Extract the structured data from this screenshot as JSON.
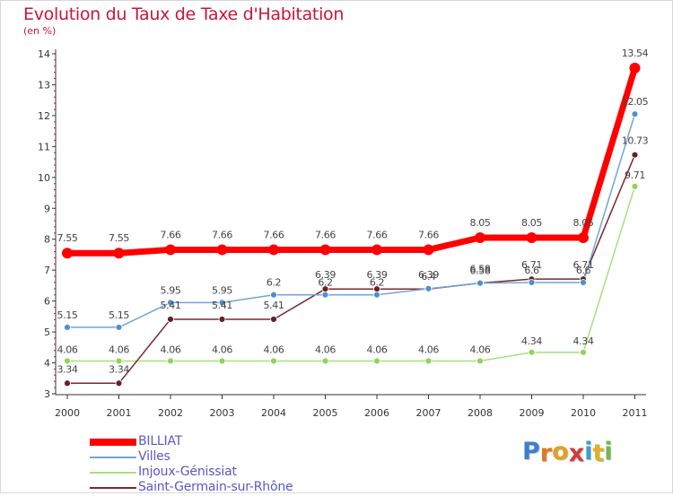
{
  "title": "Evolution du Taux de Taxe d'Habitation",
  "subtitle": "(en %)",
  "logo_text": "Proxiti",
  "chart_data": {
    "type": "line",
    "title": "Evolution du Taux de Taxe d'Habitation",
    "ylabel": "(en %)",
    "x": [
      "2000",
      "2001",
      "2002",
      "2003",
      "2004",
      "2005",
      "2006",
      "2007",
      "2008",
      "2009",
      "2010",
      "2011"
    ],
    "ylim": [
      3,
      14
    ],
    "yticks": [
      "3",
      "4",
      "5",
      "6",
      "7",
      "8",
      "9",
      "10",
      "11",
      "12",
      "13",
      "14"
    ],
    "grid": false,
    "legend_position": "bottom-left",
    "series": [
      {
        "name": "BILLIAT",
        "color": "#ff0000",
        "values": [
          7.55,
          7.55,
          7.66,
          7.66,
          7.66,
          7.66,
          7.66,
          7.66,
          8.05,
          8.05,
          8.05,
          13.54
        ],
        "labels": [
          "7.55",
          "7.55",
          "7.66",
          "7.66",
          "7.66",
          "7.66",
          "7.66",
          "7.66",
          "8.05",
          "8.05",
          "8.05",
          "13.54"
        ]
      },
      {
        "name": "Villes",
        "color": "#5b9bd5",
        "values": [
          5.15,
          5.15,
          5.95,
          5.95,
          6.2,
          6.2,
          6.2,
          6.4,
          6.58,
          6.6,
          6.6,
          12.05
        ],
        "labels": [
          "5.15",
          "5.15",
          "5.95",
          "5.95",
          "6.2",
          "6.2",
          "6.2",
          "6.4",
          "6.58",
          "6.6",
          "6.6",
          "12.05"
        ]
      },
      {
        "name": "Injoux-Génissiat",
        "color": "#99dd66",
        "values": [
          4.06,
          4.06,
          4.06,
          4.06,
          4.06,
          4.06,
          4.06,
          4.06,
          4.06,
          4.34,
          4.34,
          9.71
        ],
        "labels": [
          "4.06",
          "4.06",
          "4.06",
          "4.06",
          "4.06",
          "4.06",
          "4.06",
          "4.06",
          "4.06",
          "4.34",
          "4.34",
          "9.71"
        ]
      },
      {
        "name": "Saint-Germain-sur-Rhône",
        "color": "#7a2830",
        "values": [
          3.34,
          3.34,
          5.41,
          5.41,
          5.41,
          6.39,
          6.39,
          6.39,
          6.58,
          6.71,
          6.71,
          10.73
        ],
        "labels": [
          "3.34",
          "3.34",
          "5.41",
          "5.41",
          "5.41",
          "6.39",
          "6.39",
          "6.39",
          "6.58",
          "6.71",
          "6.71",
          "10.73"
        ]
      }
    ]
  }
}
